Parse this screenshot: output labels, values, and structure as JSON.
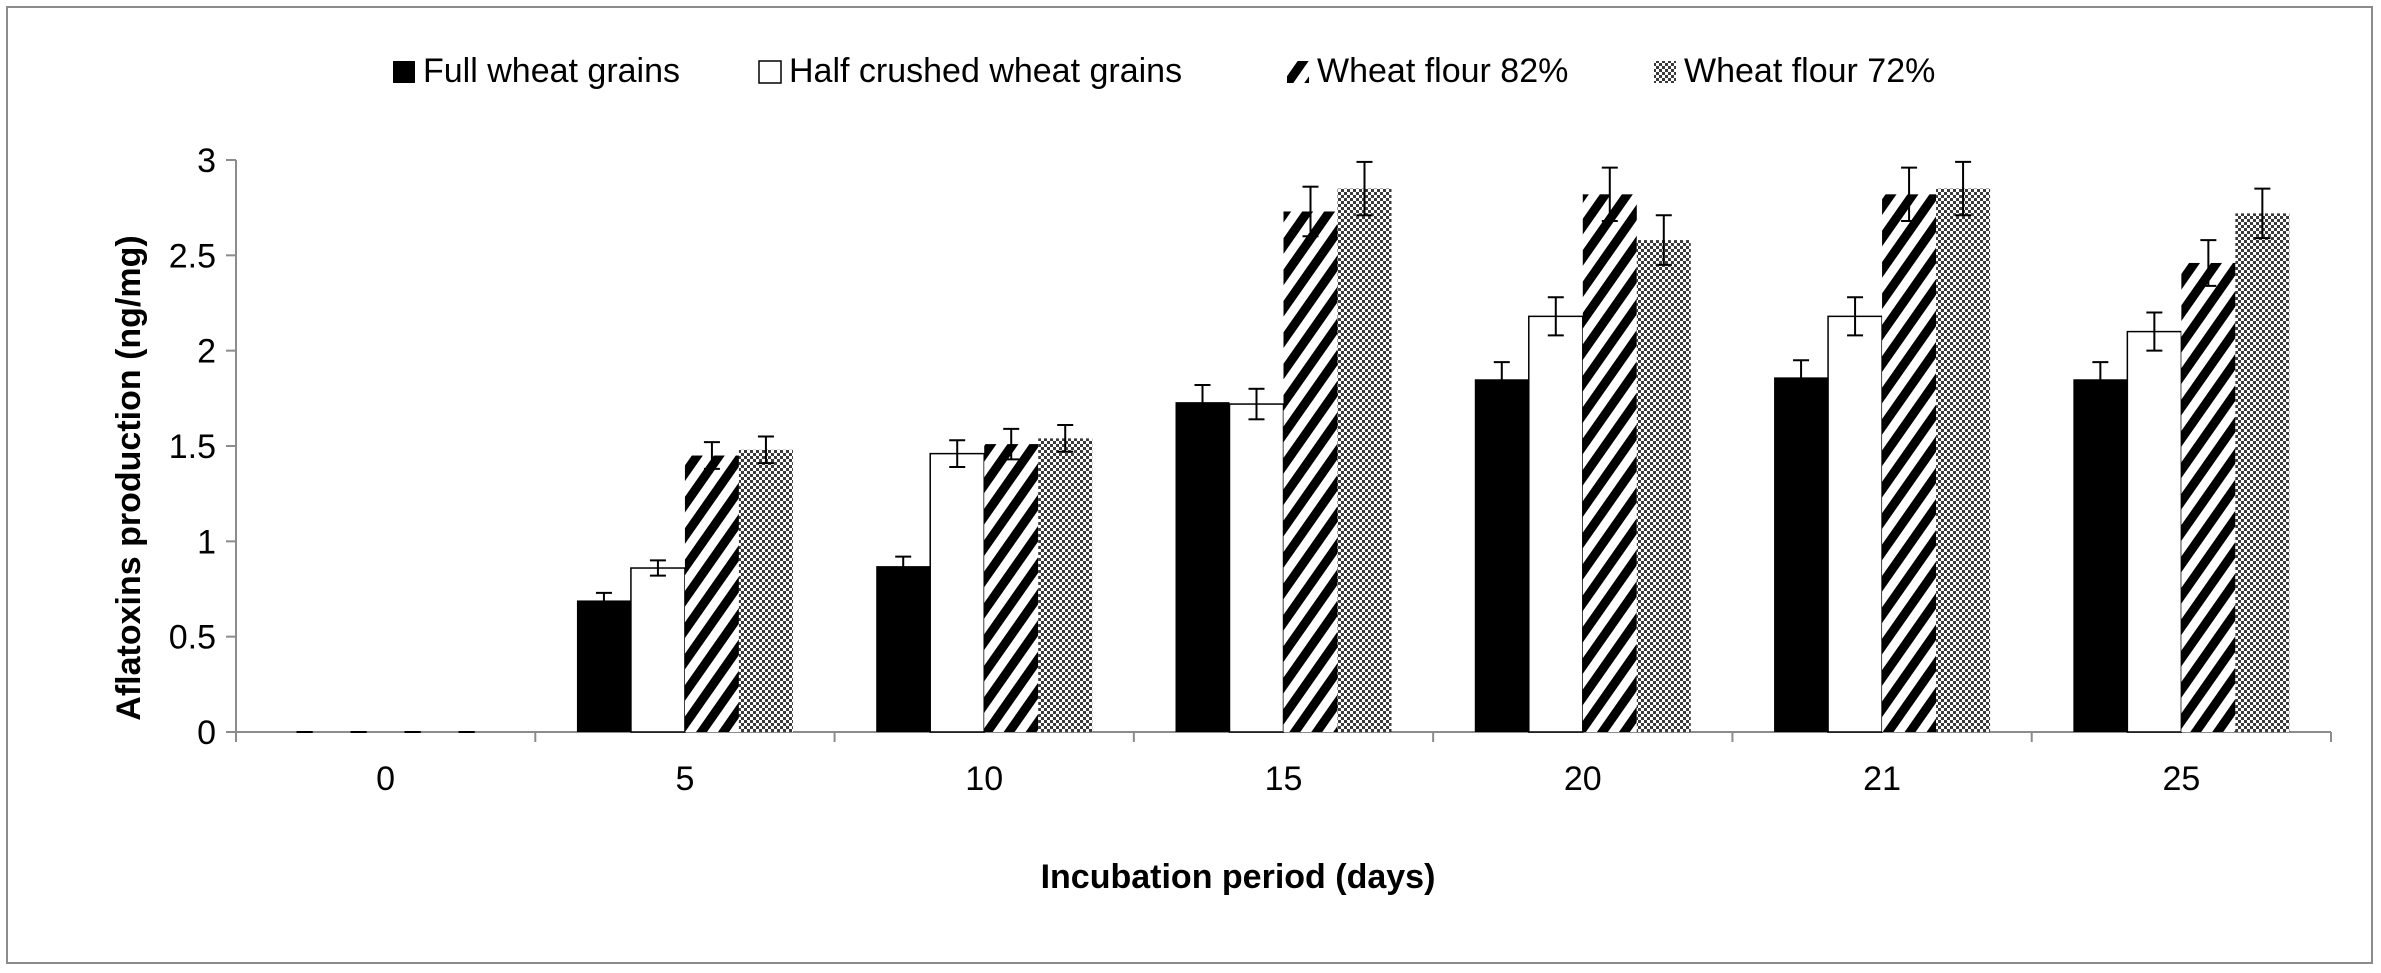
{
  "chart_data": {
    "type": "bar",
    "title": "",
    "xlabel": "Incubation period (days)",
    "ylabel": "Aflatoxins production (ng/mg)",
    "ylim": [
      0,
      3
    ],
    "yticks": [
      "0",
      "0.5",
      "1",
      "1.5",
      "2",
      "2.5",
      "3"
    ],
    "categories": [
      "0",
      "5",
      "10",
      "15",
      "20",
      "21",
      "25"
    ],
    "legend_position": "top",
    "series": [
      {
        "name": "Full wheat grains",
        "pattern": "solid",
        "values": [
          0,
          0.69,
          0.87,
          1.73,
          1.85,
          1.86,
          1.85
        ],
        "errors": [
          0,
          0.04,
          0.05,
          0.09,
          0.09,
          0.09,
          0.09
        ]
      },
      {
        "name": "Half crushed wheat grains",
        "pattern": "open",
        "values": [
          0,
          0.86,
          1.46,
          1.72,
          2.18,
          2.18,
          2.1
        ],
        "errors": [
          0,
          0.04,
          0.07,
          0.08,
          0.1,
          0.1,
          0.1
        ]
      },
      {
        "name": "Wheat flour 82%",
        "pattern": "diagonal",
        "values": [
          0,
          1.45,
          1.51,
          2.73,
          2.82,
          2.82,
          2.46
        ],
        "errors": [
          0,
          0.07,
          0.08,
          0.13,
          0.14,
          0.14,
          0.12
        ]
      },
      {
        "name": "Wheat flour 72%",
        "pattern": "checker",
        "values": [
          0,
          1.48,
          1.54,
          2.85,
          2.58,
          2.85,
          2.72
        ],
        "errors": [
          0,
          0.07,
          0.07,
          0.14,
          0.13,
          0.14,
          0.13
        ]
      }
    ]
  }
}
